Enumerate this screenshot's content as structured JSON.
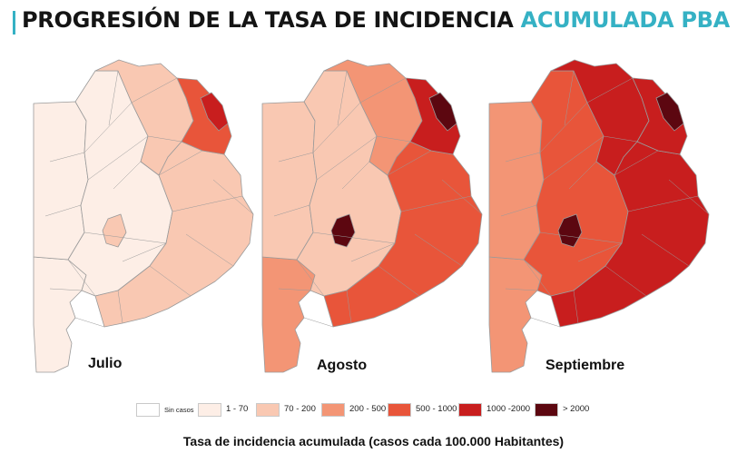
{
  "header": {
    "title_main": "PROGRESIÓN DE LA TASA DE INCIDENCIA ",
    "title_accent": "ACUMULADA PBA"
  },
  "colors": {
    "accent": "#35b1c4",
    "sin_casos": "#ffffff",
    "c1_70": "#fdeee6",
    "c70_200": "#f9c8b2",
    "c200_500": "#f39575",
    "c500_1000": "#e8553a",
    "c1000_2000": "#c81e1e",
    "c2000_plus": "#5c0710",
    "border": "#9a9a9a"
  },
  "maps": [
    {
      "month": "Julio",
      "shading": {
        "south": "1-70",
        "west": "1-70",
        "center": "1-70",
        "north": "70-200",
        "coast": "70-200",
        "metro": "500-1000",
        "metro_core": "1000-2000",
        "hotspot": "70-200"
      }
    },
    {
      "month": "Agosto",
      "shading": {
        "south": "200-500",
        "west": "70-200",
        "center": "70-200",
        "north": "200-500",
        "coast": "500-1000",
        "metro": "1000-2000",
        "metro_core": "> 2000",
        "hotspot": "> 2000"
      }
    },
    {
      "month": "Septiembre",
      "shading": {
        "south": "200-500",
        "west": "200-500",
        "center": "500-1000",
        "north": "1000-2000",
        "coast": "1000-2000",
        "metro": "1000-2000",
        "metro_core": "> 2000",
        "hotspot": "> 2000"
      }
    }
  ],
  "legend": [
    {
      "label": "Sin casos",
      "key": "Sin casos"
    },
    {
      "label": "1 - 70",
      "key": "1-70"
    },
    {
      "label": "70 - 200",
      "key": "70-200"
    },
    {
      "label": "200 - 500",
      "key": "200-500"
    },
    {
      "label": "500 - 1000",
      "key": "500-1000"
    },
    {
      "label": "1000 -2000",
      "key": "1000-2000"
    },
    {
      "label": "> 2000",
      "key": "> 2000"
    }
  ],
  "caption": "Tasa de incidencia acumulada (casos cada 100.000 Habitantes)"
}
